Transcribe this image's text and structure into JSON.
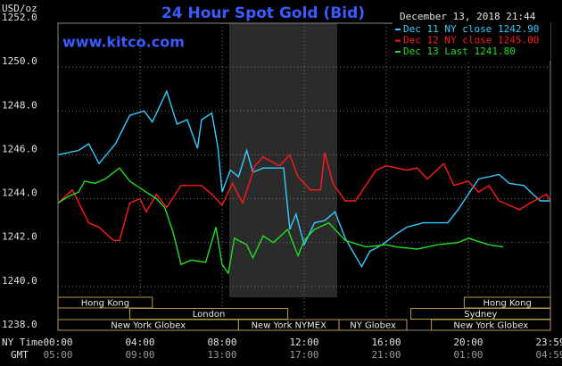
{
  "chart_data": {
    "type": "line",
    "title": "24 Hour Spot Gold (Bid)",
    "site": "www.kitco.com",
    "unit": "USD/oz",
    "timestamp": "December 13, 2018 21:44",
    "x_row_labels": [
      "NY Time",
      "GMT"
    ],
    "xlim": [
      0,
      24
    ],
    "ylim": [
      1238,
      1252
    ],
    "grid": true,
    "yticks": [
      {
        "value": 1238,
        "label": "1238.0"
      },
      {
        "value": 1240,
        "label": "1240.0"
      },
      {
        "value": 1242,
        "label": "1242.0"
      },
      {
        "value": 1244,
        "label": "1244.0"
      },
      {
        "value": 1246,
        "label": "1246.0"
      },
      {
        "value": 1248,
        "label": "1248.0"
      },
      {
        "value": 1250,
        "label": "1250.0"
      },
      {
        "value": 1252,
        "label": "1252.0"
      }
    ],
    "xticks": [
      {
        "value": 0,
        "label": "00:00"
      },
      {
        "value": 4,
        "label": "04:00"
      },
      {
        "value": 8,
        "label": "08:00"
      },
      {
        "value": 12,
        "label": "12:00"
      },
      {
        "value": 16,
        "label": "16:00"
      },
      {
        "value": 20,
        "label": "20:00"
      },
      {
        "value": 24,
        "label": "23:59"
      }
    ],
    "x2ticks": [
      {
        "value": 0,
        "label": "05:00"
      },
      {
        "value": 4,
        "label": "09:00"
      },
      {
        "value": 8,
        "label": "13:00"
      },
      {
        "value": 12,
        "label": "17:00"
      },
      {
        "value": 16,
        "label": "21:00"
      },
      {
        "value": 20,
        "label": "01:00"
      },
      {
        "value": 24,
        "label": "04:59"
      }
    ],
    "session_rows": [
      [
        {
          "label": "Hong Kong",
          "start": 0,
          "end": 4.6
        },
        {
          "label": "Hong Kong",
          "start": 19.8,
          "end": 24
        }
      ],
      [
        {
          "label": "London",
          "start": 3.5,
          "end": 11.2
        },
        {
          "label": "Sydney",
          "start": 17.2,
          "end": 24
        }
      ],
      [
        {
          "label": "New York Globex",
          "start": 0,
          "end": 8.8
        },
        {
          "label": "New York NYMEX",
          "start": 8.8,
          "end": 13.7
        },
        {
          "label": "NY Globex",
          "start": 13.7,
          "end": 17.0
        },
        {
          "label": "New York Globex",
          "start": 18.2,
          "end": 24
        }
      ]
    ],
    "series": [
      {
        "name": "Dec 11 NY close 1242.90",
        "color": "#33ccff",
        "x": [
          0,
          1,
          1.5,
          2,
          2.8,
          3.5,
          4.2,
          4.6,
          5.3,
          5.8,
          6.3,
          6.8,
          7.0,
          7.5,
          7.8,
          8.0,
          8.4,
          8.8,
          9.2,
          9.5,
          10,
          11.0,
          11.3,
          11.6,
          12,
          12.5,
          13,
          13.5,
          14,
          14.8,
          15.2,
          15.8,
          16.5,
          17,
          17.8,
          19,
          19.5,
          20.5,
          21.5,
          22,
          22.7,
          23.5,
          24
        ],
        "values": [
          1246.0,
          1246.2,
          1246.5,
          1245.6,
          1246.5,
          1247.8,
          1248.0,
          1247.5,
          1248.9,
          1247.4,
          1247.6,
          1246.3,
          1247.6,
          1247.9,
          1246.3,
          1244.3,
          1245.3,
          1245.0,
          1246.2,
          1245.2,
          1245.4,
          1245.4,
          1242.6,
          1243.3,
          1241.9,
          1242.9,
          1243.0,
          1243.4,
          1242.2,
          1240.9,
          1241.6,
          1241.9,
          1242.4,
          1242.7,
          1242.9,
          1242.9,
          1243.5,
          1244.9,
          1245.1,
          1244.7,
          1244.6,
          1243.9,
          1243.9
        ]
      },
      {
        "name": "Dec 12 NY close 1245.00",
        "color": "#ff1a1a",
        "x": [
          0,
          0.7,
          1.5,
          2,
          2.7,
          3.0,
          3.5,
          4,
          4.3,
          4.8,
          5.3,
          6,
          7,
          7.5,
          8,
          8.5,
          9,
          9.6,
          10,
          10.8,
          11.3,
          11.7,
          12.3,
          12.8,
          13.0,
          13.4,
          14,
          14.5,
          15.5,
          16,
          17,
          17.5,
          18,
          18.8,
          19.3,
          20,
          20.5,
          21,
          21.5,
          22.5,
          23,
          23.8,
          24
        ],
        "values": [
          1243.8,
          1244.4,
          1242.9,
          1242.7,
          1242.1,
          1242.1,
          1243.8,
          1244.0,
          1243.4,
          1244.2,
          1243.6,
          1244.6,
          1244.6,
          1244.2,
          1243.7,
          1244.7,
          1243.8,
          1245.5,
          1245.9,
          1245.5,
          1246.0,
          1245.0,
          1244.4,
          1244.4,
          1246.1,
          1244.7,
          1243.9,
          1243.9,
          1245.3,
          1245.5,
          1245.3,
          1245.4,
          1244.9,
          1245.6,
          1244.6,
          1244.8,
          1244.3,
          1244.6,
          1243.9,
          1243.5,
          1243.8,
          1244.2,
          1243.9
        ]
      },
      {
        "name": "Dec 13 Last 1241.80",
        "color": "#22dd22",
        "x": [
          0,
          0.5,
          1,
          1.3,
          1.8,
          2.3,
          3.0,
          3.5,
          4.3,
          4.8,
          5.2,
          5.6,
          6.0,
          6.5,
          7.2,
          7.7,
          8.0,
          8.3,
          8.6,
          9.2,
          9.5,
          10,
          10.5,
          11.2,
          11.7,
          12.0,
          12.5,
          13.2,
          14,
          15,
          16,
          16.5,
          17.5,
          18.5,
          19.5,
          20,
          21,
          21.7
        ],
        "values": [
          1243.8,
          1244.1,
          1244.3,
          1244.8,
          1244.7,
          1244.9,
          1245.4,
          1244.8,
          1244.3,
          1244.0,
          1243.6,
          1242.5,
          1241.0,
          1241.2,
          1241.1,
          1242.7,
          1241.0,
          1240.6,
          1242.2,
          1241.9,
          1241.3,
          1242.3,
          1242.0,
          1242.6,
          1241.4,
          1242.1,
          1242.6,
          1242.9,
          1242.1,
          1241.8,
          1241.9,
          1241.8,
          1241.7,
          1241.9,
          1242.0,
          1242.2,
          1241.9,
          1241.8
        ]
      }
    ]
  }
}
